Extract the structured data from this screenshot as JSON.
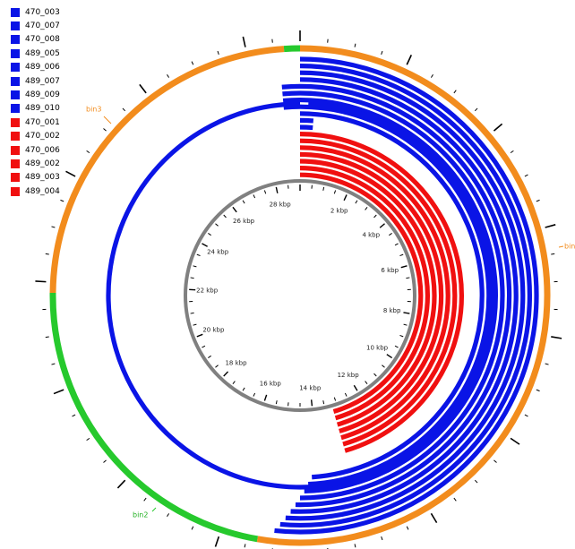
{
  "genome_length_kbp": 29,
  "colors": {
    "blue": "#0a14e6",
    "red": "#f01010",
    "orange": "#f28c1d",
    "green": "#26c92d",
    "axis": "#808080"
  },
  "legend": [
    {
      "label": "470_003",
      "color": "blue"
    },
    {
      "label": "470_007",
      "color": "blue"
    },
    {
      "label": "470_008",
      "color": "blue"
    },
    {
      "label": "489_005",
      "color": "blue"
    },
    {
      "label": "489_006",
      "color": "blue"
    },
    {
      "label": "489_007",
      "color": "blue"
    },
    {
      "label": "489_009",
      "color": "blue"
    },
    {
      "label": "489_010",
      "color": "blue"
    },
    {
      "label": "470_001",
      "color": "red"
    },
    {
      "label": "470_002",
      "color": "red"
    },
    {
      "label": "470_006",
      "color": "red"
    },
    {
      "label": "489_002",
      "color": "red"
    },
    {
      "label": "489_003",
      "color": "red"
    },
    {
      "label": "489_004",
      "color": "red"
    }
  ],
  "tracks": [
    {
      "color": "blue",
      "start_kbp": 0.0,
      "end_kbp": 15.0
    },
    {
      "color": "blue",
      "start_kbp": 0.0,
      "end_kbp": 14.9
    },
    {
      "color": "blue",
      "start_kbp": 0.0,
      "end_kbp": 14.8
    },
    {
      "color": "blue",
      "start_kbp": 0.0,
      "end_kbp": 14.7
    },
    {
      "color": "blue",
      "start_kbp": -0.4,
      "end_kbp": 14.6
    },
    {
      "color": "blue",
      "start_kbp": -0.4,
      "end_kbp": 14.5
    },
    {
      "color": "blue",
      "start_kbp": -0.4,
      "end_kbp": 14.4
    },
    {
      "color": "blue",
      "start_kbp": -0.4,
      "end_kbp": 14.3
    },
    {
      "color": "blue",
      "start_kbp": 0.0,
      "end_kbp": 14.2
    },
    {
      "color": "blue",
      "start_kbp": 0.0,
      "end_kbp": 0.35
    },
    {
      "color": "blue",
      "start_kbp": 0.0,
      "end_kbp": 0.35
    },
    {
      "color": "red",
      "start_kbp": 0.0,
      "end_kbp": 13.2
    },
    {
      "color": "red",
      "start_kbp": 0.0,
      "end_kbp": 13.2
    },
    {
      "color": "red",
      "start_kbp": 0.0,
      "end_kbp": 13.2
    },
    {
      "color": "red",
      "start_kbp": 0.0,
      "end_kbp": 13.2
    },
    {
      "color": "red",
      "start_kbp": 0.0,
      "end_kbp": 13.2
    },
    {
      "color": "red",
      "start_kbp": 0.0,
      "end_kbp": 13.2
    },
    {
      "color": "red",
      "start_kbp": 0.0,
      "end_kbp": 13.2
    }
  ],
  "full_blue_track": {
    "color": "blue",
    "start_kbp": 0.2,
    "end_kbp": 29.0
  },
  "bins": [
    {
      "label": "bin",
      "color": "orange",
      "start_kbp": 0.0,
      "end_kbp": 15.3
    },
    {
      "label": "bin2",
      "color": "green",
      "start_kbp": 15.3,
      "end_kbp": 21.8
    },
    {
      "label": "bin3",
      "color": "orange",
      "start_kbp": 21.8,
      "end_kbp": 28.7
    },
    {
      "label": "",
      "color": "green",
      "start_kbp": 28.7,
      "end_kbp": 29.0
    }
  ],
  "axis_labels": [
    {
      "kbp": 2,
      "label": "2 kbp"
    },
    {
      "kbp": 4,
      "label": "4 kbp"
    },
    {
      "kbp": 6,
      "label": "6 kbp"
    },
    {
      "kbp": 8,
      "label": "8 kbp"
    },
    {
      "kbp": 10,
      "label": "10 kbp"
    },
    {
      "kbp": 12,
      "label": "12 kbp"
    },
    {
      "kbp": 14,
      "label": "14 kbp"
    },
    {
      "kbp": 16,
      "label": "16 kbp"
    },
    {
      "kbp": 18,
      "label": "18 kbp"
    },
    {
      "kbp": 20,
      "label": "20 kbp"
    },
    {
      "kbp": 22,
      "label": "22 kbp"
    },
    {
      "kbp": 24,
      "label": "24 kbp"
    },
    {
      "kbp": 26,
      "label": "26 kbp"
    },
    {
      "kbp": 28,
      "label": "28 kbp"
    }
  ]
}
